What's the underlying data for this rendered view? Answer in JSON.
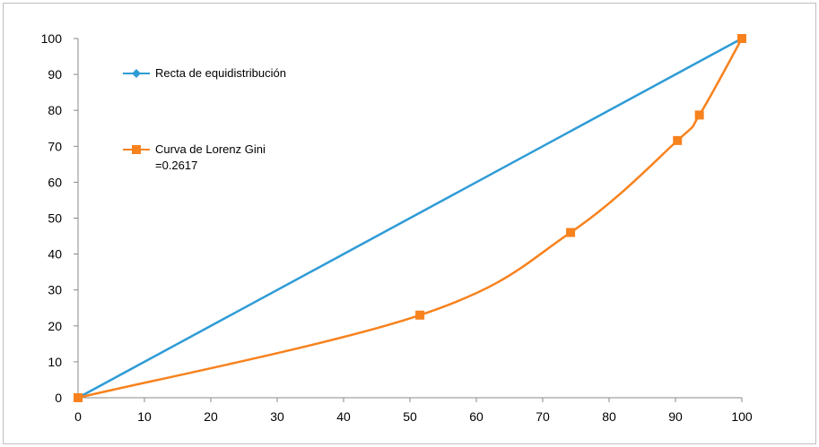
{
  "chart_data": {
    "type": "line",
    "title": "",
    "xlabel": "",
    "ylabel": "",
    "xlim": [
      0,
      100
    ],
    "ylim": [
      0,
      100
    ],
    "x_ticks": [
      "0",
      "10",
      "20",
      "30",
      "40",
      "50",
      "60",
      "70",
      "80",
      "90",
      "100"
    ],
    "y_ticks": [
      "0",
      "10",
      "20",
      "30",
      "40",
      "50",
      "60",
      "70",
      "80",
      "90",
      "100"
    ],
    "grid": false,
    "legend_position": "top-left",
    "series": [
      {
        "name": "Recta de equidistribución",
        "color": "#2E9BD6",
        "marker": "diamond",
        "smooth": false,
        "points": [
          [
            0,
            0
          ],
          [
            100,
            100
          ]
        ]
      },
      {
        "name": "Curva de Lorenz Gini",
        "name_line2": "=0.2617",
        "color": "#F7821E",
        "marker": "square",
        "smooth": true,
        "points": [
          [
            0,
            0
          ],
          [
            51.5,
            23
          ],
          [
            74.2,
            46
          ],
          [
            90.3,
            71.6
          ],
          [
            93.6,
            78.7
          ],
          [
            100,
            100
          ]
        ]
      }
    ]
  }
}
